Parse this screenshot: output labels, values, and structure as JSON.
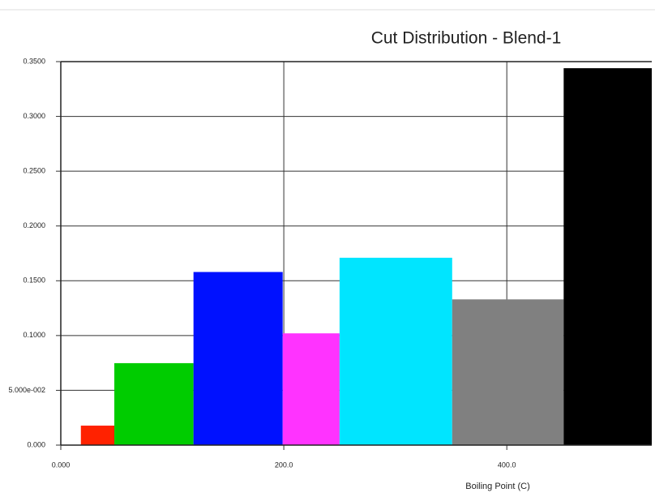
{
  "chart_data": {
    "type": "histogram",
    "title": "Cut Distribution - Blend-1",
    "x_label": "Boiling Point (C)",
    "bins": [
      18,
      48,
      119,
      199,
      250,
      351,
      451,
      530
    ],
    "values": [
      0.0178,
      0.0748,
      0.158,
      0.102,
      0.171,
      0.133,
      0.344
    ],
    "colors": [
      "#ff2200",
      "#00cc00",
      "#0011ff",
      "#ff33ff",
      "#00e5ff",
      "#808080",
      "#000000"
    ],
    "xlim": [
      0,
      530
    ],
    "ylim": [
      0,
      0.35
    ],
    "xticks": [
      {
        "value": 0,
        "label": "0.000"
      },
      {
        "value": 200,
        "label": "200.0"
      },
      {
        "value": 400,
        "label": "400.0"
      }
    ],
    "yticks": [
      {
        "value": 0,
        "label": "0.000"
      },
      {
        "value": 0.05,
        "label": "5.000e-002"
      },
      {
        "value": 0.1,
        "label": "0.1000"
      },
      {
        "value": 0.15,
        "label": "0.1500"
      },
      {
        "value": 0.2,
        "label": "0.2000"
      },
      {
        "value": 0.25,
        "label": "0.2500"
      },
      {
        "value": 0.3,
        "label": "0.3000"
      },
      {
        "value": 0.35,
        "label": "0.3500"
      }
    ],
    "grid": true
  }
}
